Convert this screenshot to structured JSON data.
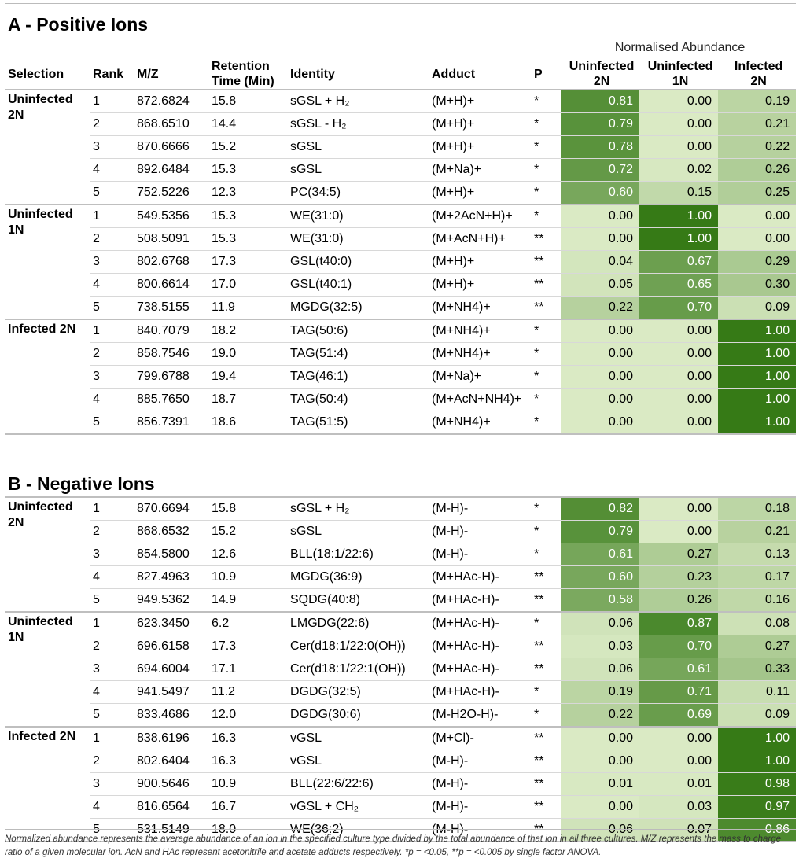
{
  "section_a_title": "A - Positive Ions",
  "section_b_title": "B - Negative Ions",
  "normalised_title": "Normalised Abundance",
  "columns": {
    "selection": "Selection",
    "rank": "Rank",
    "mz": "M/Z",
    "rt_line1": "Retention",
    "rt_line2": "Time (Min)",
    "identity": "Identity",
    "adduct": "Adduct",
    "p": "P",
    "u2n_line1": "Uninfected",
    "u2n_line2": "2N",
    "u1n_line1": "Uninfected",
    "u1n_line2": "1N",
    "i2n_line1": "Infected",
    "i2n_line2": "2N"
  },
  "positive_groups": [
    {
      "selection": "Uninfected 2N",
      "rows": [
        {
          "rank": "1",
          "mz": "872.6824",
          "rt": "15.8",
          "identity": "sGSL + H₂",
          "adduct": "(M+H)+",
          "p": "*",
          "u2n": "0.81",
          "u1n": "0.00",
          "i2n": "0.19"
        },
        {
          "rank": "2",
          "mz": "868.6510",
          "rt": "14.4",
          "identity": "sGSL - H₂",
          "adduct": "(M+H)+",
          "p": "*",
          "u2n": "0.79",
          "u1n": "0.00",
          "i2n": "0.21"
        },
        {
          "rank": "3",
          "mz": "870.6666",
          "rt": "15.2",
          "identity": "sGSL",
          "adduct": "(M+H)+",
          "p": "*",
          "u2n": "0.78",
          "u1n": "0.00",
          "i2n": "0.22"
        },
        {
          "rank": "4",
          "mz": "892.6484",
          "rt": "15.3",
          "identity": "sGSL",
          "adduct": "(M+Na)+",
          "p": "*",
          "u2n": "0.72",
          "u1n": "0.02",
          "i2n": "0.26"
        },
        {
          "rank": "5",
          "mz": "752.5226",
          "rt": "12.3",
          "identity": "PC(34:5)",
          "adduct": "(M+H)+",
          "p": "*",
          "u2n": "0.60",
          "u1n": "0.15",
          "i2n": "0.25"
        }
      ]
    },
    {
      "selection": "Uninfected 1N",
      "rows": [
        {
          "rank": "1",
          "mz": "549.5356",
          "rt": "15.3",
          "identity": "WE(31:0)",
          "adduct": "(M+2AcN+H)+",
          "p": "*",
          "u2n": "0.00",
          "u1n": "1.00",
          "i2n": "0.00"
        },
        {
          "rank": "2",
          "mz": "508.5091",
          "rt": "15.3",
          "identity": "WE(31:0)",
          "adduct": "(M+AcN+H)+",
          "p": "**",
          "u2n": "0.00",
          "u1n": "1.00",
          "i2n": "0.00"
        },
        {
          "rank": "3",
          "mz": "802.6768",
          "rt": "17.3",
          "identity": "GSL(t40:0)",
          "adduct": "(M+H)+",
          "p": "**",
          "u2n": "0.04",
          "u1n": "0.67",
          "i2n": "0.29"
        },
        {
          "rank": "4",
          "mz": "800.6614",
          "rt": "17.0",
          "identity": "GSL(t40:1)",
          "adduct": "(M+H)+",
          "p": "**",
          "u2n": "0.05",
          "u1n": "0.65",
          "i2n": "0.30"
        },
        {
          "rank": "5",
          "mz": "738.5155",
          "rt": "11.9",
          "identity": "MGDG(32:5)",
          "adduct": "(M+NH4)+",
          "p": "**",
          "u2n": "0.22",
          "u1n": "0.70",
          "i2n": "0.09"
        }
      ]
    },
    {
      "selection": "Infected 2N",
      "rows": [
        {
          "rank": "1",
          "mz": "840.7079",
          "rt": "18.2",
          "identity": "TAG(50:6)",
          "adduct": "(M+NH4)+",
          "p": "*",
          "u2n": "0.00",
          "u1n": "0.00",
          "i2n": "1.00"
        },
        {
          "rank": "2",
          "mz": "858.7546",
          "rt": "19.0",
          "identity": "TAG(51:4)",
          "adduct": "(M+NH4)+",
          "p": "*",
          "u2n": "0.00",
          "u1n": "0.00",
          "i2n": "1.00"
        },
        {
          "rank": "3",
          "mz": "799.6788",
          "rt": "19.4",
          "identity": "TAG(46:1)",
          "adduct": "(M+Na)+",
          "p": "*",
          "u2n": "0.00",
          "u1n": "0.00",
          "i2n": "1.00"
        },
        {
          "rank": "4",
          "mz": "885.7650",
          "rt": "18.7",
          "identity": "TAG(50:4)",
          "adduct": "(M+AcN+NH4)+",
          "p": "*",
          "u2n": "0.00",
          "u1n": "0.00",
          "i2n": "1.00"
        },
        {
          "rank": "5",
          "mz": "856.7391",
          "rt": "18.6",
          "identity": "TAG(51:5)",
          "adduct": "(M+NH4)+",
          "p": "*",
          "u2n": "0.00",
          "u1n": "0.00",
          "i2n": "1.00"
        }
      ]
    }
  ],
  "negative_groups": [
    {
      "selection": "Uninfected 2N",
      "rows": [
        {
          "rank": "1",
          "mz": "870.6694",
          "rt": "15.8",
          "identity": "sGSL + H₂",
          "adduct": "(M-H)-",
          "p": "*",
          "u2n": "0.82",
          "u1n": "0.00",
          "i2n": "0.18"
        },
        {
          "rank": "2",
          "mz": "868.6532",
          "rt": "15.2",
          "identity": "sGSL",
          "adduct": "(M-H)-",
          "p": "*",
          "u2n": "0.79",
          "u1n": "0.00",
          "i2n": "0.21"
        },
        {
          "rank": "3",
          "mz": "854.5800",
          "rt": "12.6",
          "identity": "BLL(18:1/22:6)",
          "adduct": "(M-H)-",
          "p": "*",
          "u2n": "0.61",
          "u1n": "0.27",
          "i2n": "0.13"
        },
        {
          "rank": "4",
          "mz": "827.4963",
          "rt": "10.9",
          "identity": "MGDG(36:9)",
          "adduct": "(M+HAc-H)-",
          "p": "**",
          "u2n": "0.60",
          "u1n": "0.23",
          "i2n": "0.17"
        },
        {
          "rank": "5",
          "mz": "949.5362",
          "rt": "14.9",
          "identity": "SQDG(40:8)",
          "adduct": "(M+HAc-H)-",
          "p": "**",
          "u2n": "0.58",
          "u1n": "0.26",
          "i2n": "0.16"
        }
      ]
    },
    {
      "selection": "Uninfected 1N",
      "rows": [
        {
          "rank": "1",
          "mz": "623.3450",
          "rt": "6.2",
          "identity": "LMGDG(22:6)",
          "adduct": "(M+HAc-H)-",
          "p": "*",
          "u2n": "0.06",
          "u1n": "0.87",
          "i2n": "0.08"
        },
        {
          "rank": "2",
          "mz": "696.6158",
          "rt": "17.3",
          "identity": "Cer(d18:1/22:0(OH))",
          "adduct": "(M+HAc-H)-",
          "p": "**",
          "u2n": "0.03",
          "u1n": "0.70",
          "i2n": "0.27"
        },
        {
          "rank": "3",
          "mz": "694.6004",
          "rt": "17.1",
          "identity": "Cer(d18:1/22:1(OH))",
          "adduct": "(M+HAc-H)-",
          "p": "**",
          "u2n": "0.06",
          "u1n": "0.61",
          "i2n": "0.33"
        },
        {
          "rank": "4",
          "mz": "941.5497",
          "rt": "11.2",
          "identity": "DGDG(32:5)",
          "adduct": "(M+HAc-H)-",
          "p": "*",
          "u2n": "0.19",
          "u1n": "0.71",
          "i2n": "0.11"
        },
        {
          "rank": "5",
          "mz": "833.4686",
          "rt": "12.0",
          "identity": "DGDG(30:6)",
          "adduct": "(M-H2O-H)-",
          "p": "*",
          "u2n": "0.22",
          "u1n": "0.69",
          "i2n": "0.09"
        }
      ]
    },
    {
      "selection": "Infected 2N",
      "rows": [
        {
          "rank": "1",
          "mz": "838.6196",
          "rt": "16.3",
          "identity": "vGSL",
          "adduct": "(M+Cl)-",
          "p": "**",
          "u2n": "0.00",
          "u1n": "0.00",
          "i2n": "1.00"
        },
        {
          "rank": "2",
          "mz": "802.6404",
          "rt": "16.3",
          "identity": "vGSL",
          "adduct": "(M-H)-",
          "p": "**",
          "u2n": "0.00",
          "u1n": "0.00",
          "i2n": "1.00"
        },
        {
          "rank": "3",
          "mz": "900.5646",
          "rt": "10.9",
          "identity": "BLL(22:6/22:6)",
          "adduct": "(M-H)-",
          "p": "**",
          "u2n": "0.01",
          "u1n": "0.01",
          "i2n": "0.98"
        },
        {
          "rank": "4",
          "mz": "816.6564",
          "rt": "16.7",
          "identity": "vGSL + CH₂",
          "adduct": "(M-H)-",
          "p": "**",
          "u2n": "0.00",
          "u1n": "0.03",
          "i2n": "0.97"
        },
        {
          "rank": "5",
          "mz": "531.5149",
          "rt": "18.0",
          "identity": "WE(36:2)",
          "adduct": "(M-H)-",
          "p": "**",
          "u2n": "0.06",
          "u1n": "0.07",
          "i2n": "0.86"
        }
      ]
    }
  ],
  "footnote": "Normalized abundance represents the average abundance of an ion in the specified culture type divided by the total abundance of that ion in all three cultures. M/Z represents the mass to charge ratio of a given molecular ion. AcN and HAc represent acetonitrile and acetate adducts respectively. *p = <0.05, **p = <0.005 by single factor ANOVA."
}
